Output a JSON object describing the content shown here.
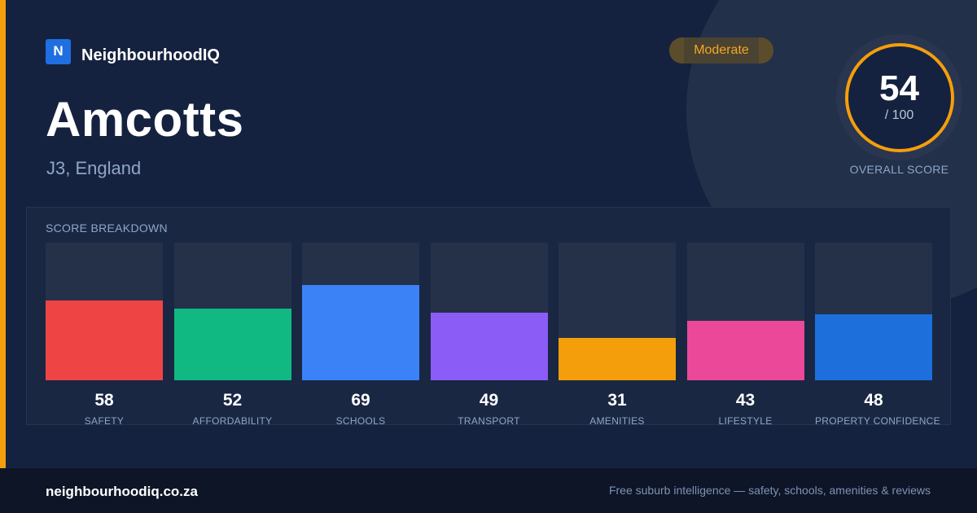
{
  "brand": {
    "logo_letter": "N",
    "name": "NeighbourhoodIQ"
  },
  "header": {
    "title": "Amcotts",
    "subtitle": "J3, England",
    "badge": "Moderate"
  },
  "overall": {
    "score": "54",
    "max": "/ 100",
    "label": "OVERALL SCORE",
    "accent": "#f59e0b"
  },
  "breakdown": {
    "title": "SCORE BREAKDOWN",
    "max": 100,
    "items": [
      {
        "value": "58",
        "label": "SAFETY",
        "color": "#ef4444"
      },
      {
        "value": "52",
        "label": "AFFORDABILITY",
        "color": "#10b981"
      },
      {
        "value": "69",
        "label": "SCHOOLS",
        "color": "#3b82f6"
      },
      {
        "value": "49",
        "label": "TRANSPORT",
        "color": "#8b5cf6"
      },
      {
        "value": "31",
        "label": "AMENITIES",
        "color": "#f59e0b"
      },
      {
        "value": "43",
        "label": "LIFESTYLE",
        "color": "#ec4899"
      },
      {
        "value": "48",
        "label": "PROPERTY CONFIDENCE",
        "color": "#1d6fdc"
      }
    ]
  },
  "footer": {
    "url": "neighbourhoodiq.co.za",
    "tagline": "Free suburb intelligence — safety, schools, amenities & reviews"
  }
}
